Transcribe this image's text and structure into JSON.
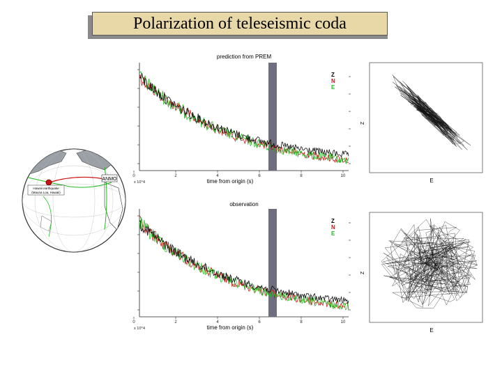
{
  "slide": {
    "title": "Polarization of teleseismic coda"
  },
  "globe": {
    "station_label": "ANMO",
    "event_label_line1": "Hawaii earthquake",
    "event_label_line2": "(Mauna Loa, Hawaii)"
  },
  "panels": [
    {
      "title": "prediction from PREM",
      "xlabel": "time from origin (s)",
      "x_ticks": [
        "0",
        "2",
        "4",
        "6",
        "8",
        "10"
      ],
      "tick_unit_note": "x 10^4",
      "legend": [
        "Z",
        "N",
        "E"
      ],
      "legend_colors": [
        "#000000",
        "#cc1111",
        "#22bb22"
      ],
      "window_color": "#6e6e7e"
    },
    {
      "title": "observation",
      "xlabel": "time from origin (s)",
      "x_ticks": [
        "0",
        "2",
        "4",
        "6",
        "8",
        "10"
      ],
      "tick_unit_note": "x 10^4",
      "legend": [
        "Z",
        "N",
        "E"
      ],
      "legend_colors": [
        "#000000",
        "#cc1111",
        "#22bb22"
      ],
      "window_color": "#6e6e7e"
    }
  ],
  "particle_motion": [
    {
      "xlabel": "E",
      "ylabel": "Z",
      "pattern": "linear"
    },
    {
      "xlabel": "E",
      "ylabel": "Z",
      "pattern": "random"
    }
  ]
}
